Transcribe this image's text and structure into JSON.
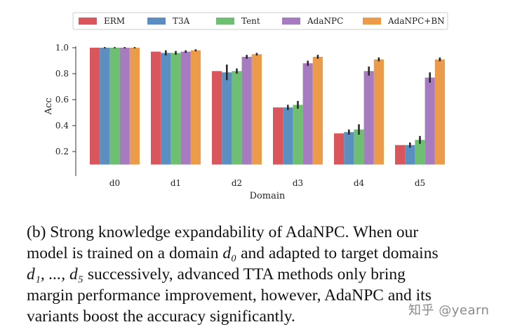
{
  "chart_data": {
    "type": "bar",
    "categories": [
      "d0",
      "d1",
      "d2",
      "d3",
      "d4",
      "d5"
    ],
    "series": [
      {
        "name": "ERM",
        "color": "#d9575c",
        "values": [
          1.0,
          0.97,
          0.82,
          0.54,
          0.34,
          0.25
        ],
        "err": [
          0.0,
          0.0,
          0.0,
          0.0,
          0.0,
          0.0
        ]
      },
      {
        "name": "T3A",
        "color": "#5b8fc2",
        "values": [
          1.0,
          0.96,
          0.81,
          0.54,
          0.35,
          0.25
        ],
        "err": [
          0.005,
          0.02,
          0.06,
          0.02,
          0.02,
          0.02
        ]
      },
      {
        "name": "Tent",
        "color": "#6fbf73",
        "values": [
          1.0,
          0.96,
          0.82,
          0.56,
          0.37,
          0.29
        ],
        "err": [
          0.005,
          0.015,
          0.02,
          0.03,
          0.04,
          0.03
        ]
      },
      {
        "name": "AdaNPC",
        "color": "#a77bbf",
        "values": [
          1.0,
          0.97,
          0.93,
          0.88,
          0.82,
          0.77
        ],
        "err": [
          0.005,
          0.01,
          0.015,
          0.02,
          0.035,
          0.04
        ]
      },
      {
        "name": "AdaNPC+BN",
        "color": "#eb9b49",
        "values": [
          1.0,
          0.98,
          0.95,
          0.93,
          0.91,
          0.91
        ],
        "err": [
          0.005,
          0.008,
          0.01,
          0.015,
          0.015,
          0.015
        ]
      }
    ],
    "xlabel": "Domain",
    "ylabel": "Acc",
    "yticks": [
      "0.2",
      "0.4",
      "0.6",
      "0.8",
      "1.0"
    ],
    "ylim": [
      0.0,
      1.05
    ],
    "bar_baseline": 0.1,
    "legend_position": "top",
    "grid": false
  },
  "caption": {
    "line1": "(b) Strong knowledge expandability of AdaNPC. When our",
    "line2_a": "model is trained on a domain ",
    "line2_math": "d₀",
    "line2_b": " and adapted to target domains",
    "line3_math": "d₁, ..., d₅",
    "line3_b": " successively, advanced TTA methods only bring",
    "line4": "margin performance improvement, however, AdaNPC and its",
    "line5": "variants boost the accuracy significantly."
  },
  "watermark": "知乎 @yearn"
}
